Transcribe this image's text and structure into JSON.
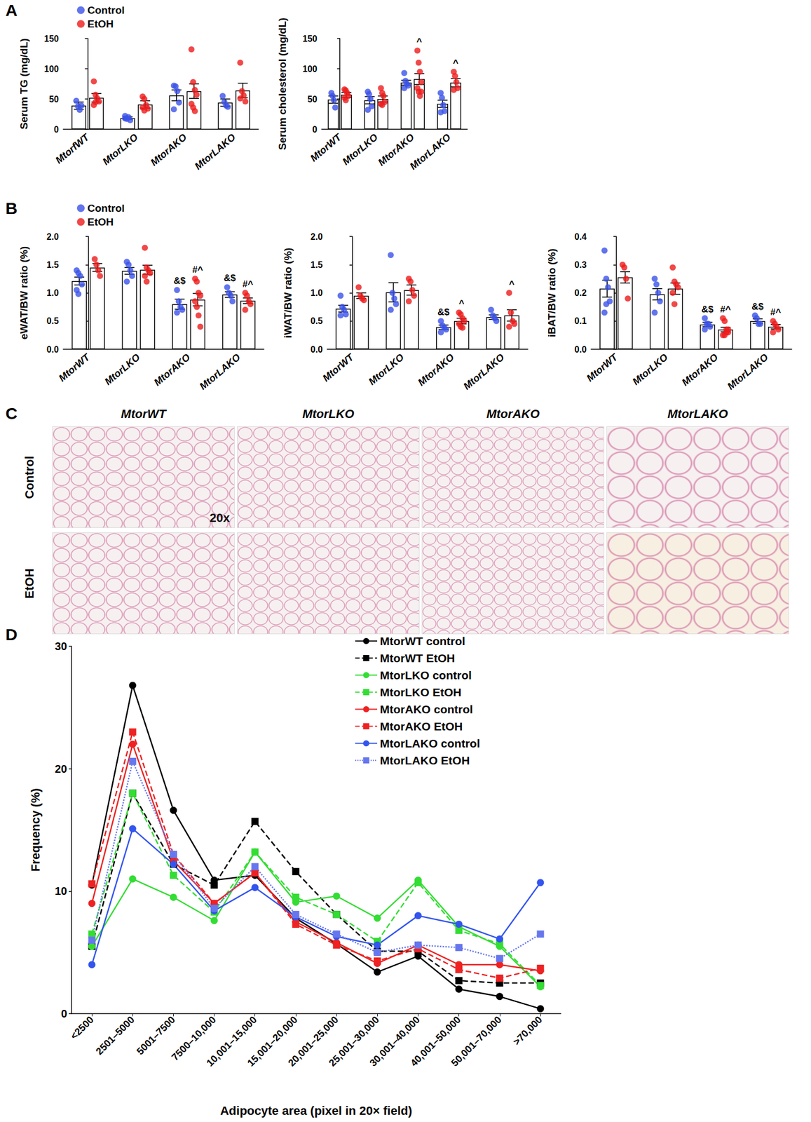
{
  "chart_data": [
    {
      "panel": "A",
      "type": "bar",
      "y_label": "Serum TG (mg/dL)",
      "categories": [
        "MtorfWT",
        "MtorLKO",
        "MtorAKO",
        "MtorLAKO"
      ],
      "ylim": [
        0,
        150
      ],
      "yticks": [
        0,
        50,
        100,
        150
      ],
      "grid": false,
      "legend": "upper left",
      "series": [
        {
          "name": "Control",
          "color": "#3b52e8",
          "values": [
            39,
            18.5,
            56,
            44
          ],
          "errors": [
            6,
            2,
            9,
            6
          ],
          "points": [
            [
              47,
              38,
              32,
              39
            ],
            [
              22,
              17,
              20,
              15,
              18
            ],
            [
              72,
              71,
              63,
              44,
              33
            ],
            [
              55,
              45,
              39,
              37
            ]
          ]
        },
        {
          "name": "EtOH",
          "color": "#ee1c1c",
          "values": [
            52,
            41,
            63,
            64
          ],
          "errors": [
            7,
            6,
            12,
            12
          ],
          "points": [
            [
              79,
              57,
              51,
              46,
              40,
              45
            ],
            [
              54,
              50,
              40,
              34,
              36,
              31
            ],
            [
              132,
              78,
              65,
              57,
              42,
              36,
              30
            ],
            [
              110,
              63,
              56,
              46,
              51
            ]
          ]
        }
      ],
      "annotations": []
    },
    {
      "type": "bar",
      "y_label": "Serum cholesterol (mg/dL)",
      "categories": [
        "MtorWT",
        "MtorLKO",
        "MtorAKO",
        "MtorLAKO"
      ],
      "ylim": [
        0,
        150
      ],
      "yticks": [
        0,
        50,
        100,
        150
      ],
      "grid": false,
      "series": [
        {
          "name": "Control",
          "color": "#3b52e8",
          "values": [
            49,
            48,
            77,
            42
          ],
          "errors": [
            6,
            6,
            4,
            6
          ],
          "points": [
            [
              60,
              55,
              48,
              36
            ],
            [
              62,
              58,
              50,
              38,
              32
            ],
            [
              93,
              80,
              75,
              72,
              68
            ],
            [
              60,
              52,
              40,
              30,
              28
            ]
          ]
        },
        {
          "name": "EtOH",
          "color": "#ee1c1c",
          "values": [
            57,
            50,
            83,
            77
          ],
          "errors": [
            4,
            5,
            9,
            7
          ],
          "points": [
            [
              66,
              64,
              60,
              55,
              52,
              48
            ],
            [
              68,
              60,
              55,
              45,
              42,
              40
            ],
            [
              130,
              110,
              95,
              78,
              68,
              62,
              55,
              62
            ],
            [
              95,
              88,
              78,
              68,
              65
            ]
          ]
        }
      ],
      "annotations": [
        {
          "category": "MtorAKO",
          "series": "EtOH",
          "text": "^"
        },
        {
          "category": "MtorLAKO",
          "series": "EtOH",
          "text": "^"
        }
      ]
    },
    {
      "panel": "B",
      "type": "bar",
      "y_label": "eWAT/BW ratio (%)",
      "categories": [
        "MtorWT",
        "MtorLKO",
        "MtorAKO",
        "MtorLAKO"
      ],
      "ylim": [
        0,
        2
      ],
      "yticks": [
        {
          "value": 0,
          "label": "0.0"
        },
        0.5,
        {
          "value": 1,
          "label": "1.0"
        },
        1.5,
        {
          "value": 2,
          "label": "2.0"
        }
      ],
      "grid": false,
      "legend": "upper left",
      "series": [
        {
          "name": "Control",
          "color": "#3b52e8",
          "values": [
            1.21,
            1.39,
            0.8,
            0.97
          ],
          "errors": [
            0.07,
            0.06,
            0.09,
            0.05
          ],
          "points": [
            [
              1.4,
              1.35,
              1.3,
              1.15,
              1.05,
              0.98
            ],
            [
              1.55,
              1.5,
              1.4,
              1.3,
              1.2
            ],
            [
              1.05,
              0.85,
              0.75,
              0.7,
              0.65
            ],
            [
              1.1,
              1.0,
              0.95,
              0.85
            ]
          ]
        },
        {
          "name": "EtOH",
          "color": "#ee1c1c",
          "values": [
            1.45,
            1.41,
            0.88,
            0.86
          ],
          "errors": [
            0.07,
            0.08,
            0.11,
            0.05
          ],
          "points": [
            [
              1.6,
              1.5,
              1.4,
              1.3
            ],
            [
              1.8,
              1.45,
              1.4,
              1.35,
              1.3,
              1.2
            ],
            [
              1.25,
              1.2,
              1.0,
              0.95,
              0.85,
              0.75,
              0.6,
              0.4
            ],
            [
              1.0,
              0.95,
              0.85,
              0.8,
              0.7
            ]
          ]
        }
      ],
      "annotations": [
        {
          "category": "MtorAKO",
          "series": "Control",
          "text": "&$"
        },
        {
          "category": "MtorAKO",
          "series": "EtOH",
          "text": "#^"
        },
        {
          "category": "MtorLAKO",
          "series": "Control",
          "text": "&$"
        },
        {
          "category": "MtorLAKO",
          "series": "EtOH",
          "text": "#^"
        }
      ]
    },
    {
      "type": "bar",
      "y_label": "iWAT/BW ratio (%)",
      "categories": [
        "MtorWT",
        "MtorLKO",
        "MtorAKO",
        "MtorLAKO"
      ],
      "ylim": [
        0,
        2
      ],
      "yticks": [
        {
          "value": 0,
          "label": "0.0"
        },
        0.5,
        {
          "value": 1,
          "label": "1.0"
        },
        1.5,
        {
          "value": 2,
          "label": "2.0"
        }
      ],
      "grid": false,
      "series": [
        {
          "name": "Control",
          "color": "#3b52e8",
          "values": [
            0.72,
            1.01,
            0.39,
            0.57
          ],
          "errors": [
            0.06,
            0.17,
            0.04,
            0.04
          ],
          "points": [
            [
              0.95,
              0.75,
              0.7,
              0.62,
              0.6
            ],
            [
              1.67,
              1.0,
              0.9,
              0.8,
              0.7
            ],
            [
              0.5,
              0.42,
              0.38,
              0.35,
              0.3
            ],
            [
              0.7,
              0.6,
              0.55,
              0.5
            ]
          ]
        },
        {
          "name": "EtOH",
          "color": "#ee1c1c",
          "values": [
            0.95,
            1.05,
            0.5,
            0.6
          ],
          "errors": [
            0.05,
            0.09,
            0.05,
            0.1
          ],
          "points": [
            [
              1.1,
              0.95,
              0.9,
              0.87
            ],
            [
              1.25,
              1.2,
              1.05,
              0.95,
              0.85
            ],
            [
              0.65,
              0.62,
              0.55,
              0.5,
              0.45,
              0.4,
              0.38
            ],
            [
              1.0,
              0.65,
              0.5,
              0.45,
              0.4
            ]
          ]
        }
      ],
      "annotations": [
        {
          "category": "MtorAKO",
          "series": "Control",
          "text": "&$"
        },
        {
          "category": "MtorAKO",
          "series": "EtOH",
          "text": "^"
        },
        {
          "category": "MtorLAKO",
          "series": "EtOH",
          "text": "^"
        }
      ]
    },
    {
      "type": "bar",
      "y_label": "iBAT/BW ratio (%)",
      "categories": [
        "MtorWT",
        "MtorLKO",
        "MtorAKO",
        "MtorLAKO"
      ],
      "ylim": [
        0,
        0.4
      ],
      "yticks": [
        {
          "value": 0,
          "label": "0.0"
        },
        0.1,
        0.2,
        0.3,
        0.4
      ],
      "grid": false,
      "series": [
        {
          "name": "Control",
          "color": "#3b52e8",
          "values": [
            0.215,
            0.195,
            0.088,
            0.1
          ],
          "errors": [
            0.03,
            0.02,
            0.008,
            0.008
          ],
          "points": [
            [
              0.35,
              0.25,
              0.22,
              0.17,
              0.13,
              0.16
            ],
            [
              0.25,
              0.23,
              0.2,
              0.17,
              0.13
            ],
            [
              0.11,
              0.09,
              0.09,
              0.08,
              0.07
            ],
            [
              0.12,
              0.11,
              0.09,
              0.09
            ]
          ]
        },
        {
          "name": "EtOH",
          "color": "#ee1c1c",
          "values": [
            0.255,
            0.215,
            0.07,
            0.08
          ],
          "errors": [
            0.02,
            0.02,
            0.008,
            0.008
          ],
          "points": [
            [
              0.3,
              0.29,
              0.25,
              0.18
            ],
            [
              0.29,
              0.24,
              0.23,
              0.22,
              0.2,
              0.16
            ],
            [
              0.11,
              0.1,
              0.07,
              0.06,
              0.05,
              0.05,
              0.06,
              0.07
            ],
            [
              0.1,
              0.09,
              0.08,
              0.07,
              0.06
            ]
          ]
        }
      ],
      "annotations": [
        {
          "category": "MtorAKO",
          "series": "Control",
          "text": "&$"
        },
        {
          "category": "MtorAKO",
          "series": "EtOH",
          "text": "#^"
        },
        {
          "category": "MtorLAKO",
          "series": "Control",
          "text": "&$"
        },
        {
          "category": "MtorLAKO",
          "series": "EtOH",
          "text": "#^"
        }
      ]
    },
    {
      "panel": "D",
      "type": "line",
      "x_label": "Adipocyte area (pixel in 20× field)",
      "y_label": "Frequency (%)",
      "categories": [
        "<2500",
        "2501–5000",
        "5001–7500",
        "7500–10,000",
        "10,001–15,000",
        "15,001–20,000",
        "20,001–25,000",
        "25,001–30,000",
        "30,001–40,000",
        "40,001–50,000",
        "50,001–70,000",
        ">70,000"
      ],
      "ylim": [
        0,
        30
      ],
      "yticks": [
        0,
        10,
        20,
        30
      ],
      "grid": false,
      "legend": "upper right",
      "series": [
        {
          "name": "MtorWT control",
          "color": "#000000",
          "marker": "circle",
          "line_style": "solid",
          "values": [
            10.5,
            26.8,
            16.6,
            10.9,
            11.3,
            7.8,
            5.7,
            3.4,
            4.7,
            2.0,
            1.4,
            0.4
          ]
        },
        {
          "name": "MtorWT EtOH",
          "color": "#000000",
          "marker": "square",
          "line_style": "dashed",
          "values": [
            5.5,
            18,
            12.2,
            10.5,
            15.7,
            11.6,
            8.1,
            5.1,
            5.1,
            2.7,
            2.5,
            2.5
          ]
        },
        {
          "name": "MtorLKO control",
          "color": "#33dd33",
          "marker": "circle",
          "line_style": "solid",
          "values": [
            5.5,
            11,
            9.5,
            7.6,
            13.2,
            9.1,
            9.6,
            7.8,
            10.9,
            7.1,
            5.5,
            2.2
          ]
        },
        {
          "name": "MtorLKO EtOH",
          "color": "#33dd33",
          "marker": "square",
          "line_style": "dashed",
          "values": [
            6.5,
            18,
            11.3,
            8.3,
            13.2,
            9.5,
            8.1,
            5.9,
            10.7,
            6.8,
            5.7,
            2.3
          ]
        },
        {
          "name": "MtorAKO control",
          "color": "#ee2222",
          "marker": "circle",
          "line_style": "solid",
          "values": [
            9,
            22,
            12.5,
            9,
            11.5,
            7.5,
            5.8,
            4.1,
            5.6,
            4,
            4,
            3.5
          ]
        },
        {
          "name": "MtorAKO EtOH",
          "color": "#ee2222",
          "marker": "square",
          "line_style": "dashed",
          "values": [
            10.6,
            23,
            13,
            9,
            11.5,
            7.3,
            5.6,
            4.3,
            5.3,
            3.6,
            2.9,
            3.7
          ]
        },
        {
          "name": "MtorLAKO control",
          "color": "#3355ee",
          "marker": "circle",
          "line_style": "solid",
          "values": [
            4,
            15.1,
            12.2,
            8.4,
            10.3,
            7.9,
            6.3,
            5.6,
            8,
            7.3,
            6.1,
            10.7
          ]
        },
        {
          "name": "MtorLAKO EtOH",
          "color": "#6677ee",
          "marker": "square",
          "line_style": "dotted",
          "values": [
            6,
            20.6,
            13,
            8.6,
            12,
            8.1,
            6.5,
            5,
            5.6,
            5.4,
            4.5,
            6.5
          ]
        }
      ]
    }
  ],
  "micrographs": {
    "panel": "C",
    "columns": [
      "MtorWT",
      "MtorLKO",
      "MtorAKO",
      "MtorLAKO"
    ],
    "rows": [
      "Control",
      "EtOH"
    ],
    "magnification": "20x"
  }
}
